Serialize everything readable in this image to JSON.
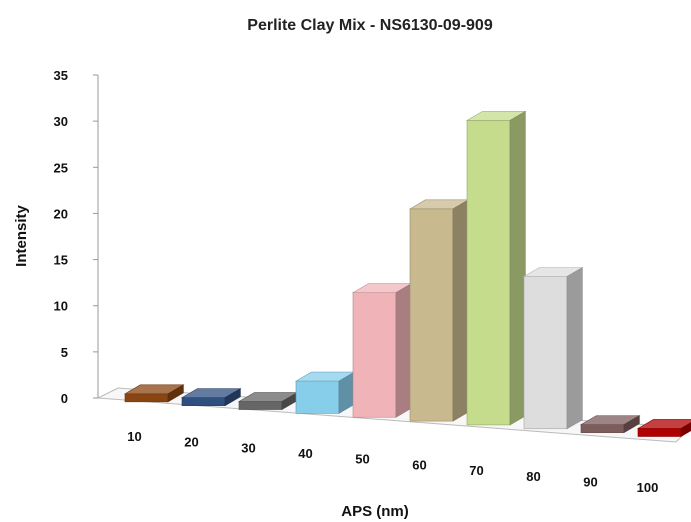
{
  "chart_data": {
    "type": "bar",
    "title": "Perlite Clay Mix - NS6130-09-909",
    "xlabel": "APS (nm)",
    "ylabel": "Intensity",
    "categories": [
      "10",
      "20",
      "30",
      "40",
      "50",
      "60",
      "70",
      "80",
      "90",
      "100"
    ],
    "values": [
      0,
      0,
      0,
      3.5,
      13.5,
      23,
      33,
      16.5,
      0,
      0
    ],
    "ylim": [
      0,
      35
    ],
    "yticks": [
      "0",
      "5",
      "10",
      "15",
      "20",
      "25",
      "30",
      "35"
    ],
    "grid": false,
    "legend": "none",
    "three_d": true,
    "colors": [
      "#8b4513",
      "#2f4f7f",
      "#666666",
      "#87ceeb",
      "#f0b4b8",
      "#c8b98e",
      "#c5dc8c",
      "#dddddd",
      "#7d5c5c",
      "#b20000"
    ]
  }
}
